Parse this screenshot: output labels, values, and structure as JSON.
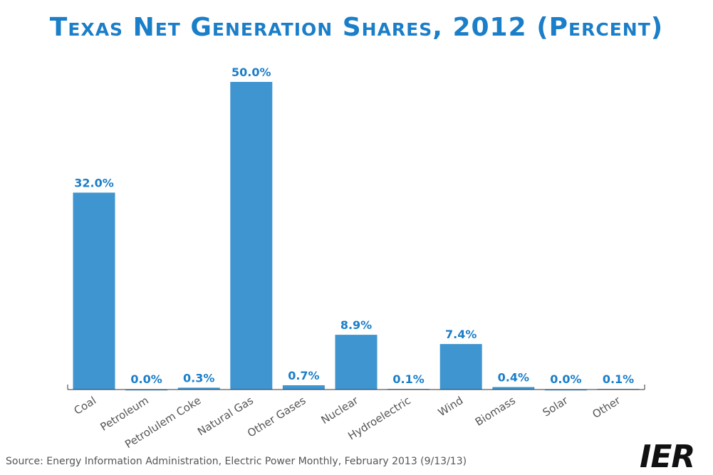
{
  "chart_data": {
    "type": "bar",
    "title": "Texas Net Generation Shares, 2012 (Percent)",
    "xlabel": "",
    "ylabel": "",
    "ylim": [
      0,
      50
    ],
    "grid": false,
    "categories": [
      "Coal",
      "Petroleum",
      "Petrolulem Coke",
      "Natural Gas",
      "Other Gases",
      "Nuclear",
      "Hydroelectric",
      "Wind",
      "Biomass",
      "Solar",
      "Other"
    ],
    "values": [
      32.0,
      0.0,
      0.3,
      50.0,
      0.7,
      8.9,
      0.1,
      7.4,
      0.4,
      0.0,
      0.1
    ],
    "data_labels": [
      "32.0%",
      "0.0%",
      "0.3%",
      "50.0%",
      "0.7%",
      "8.9%",
      "0.1%",
      "7.4%",
      "0.4%",
      "0.0%",
      "0.1%"
    ],
    "bar_color": "#3e95d0",
    "label_color": "#1a7ec8"
  },
  "source": "Source: Energy Information Administration, Electric Power Monthly, February 2013 (9/13/13)",
  "logo_text": "IER"
}
